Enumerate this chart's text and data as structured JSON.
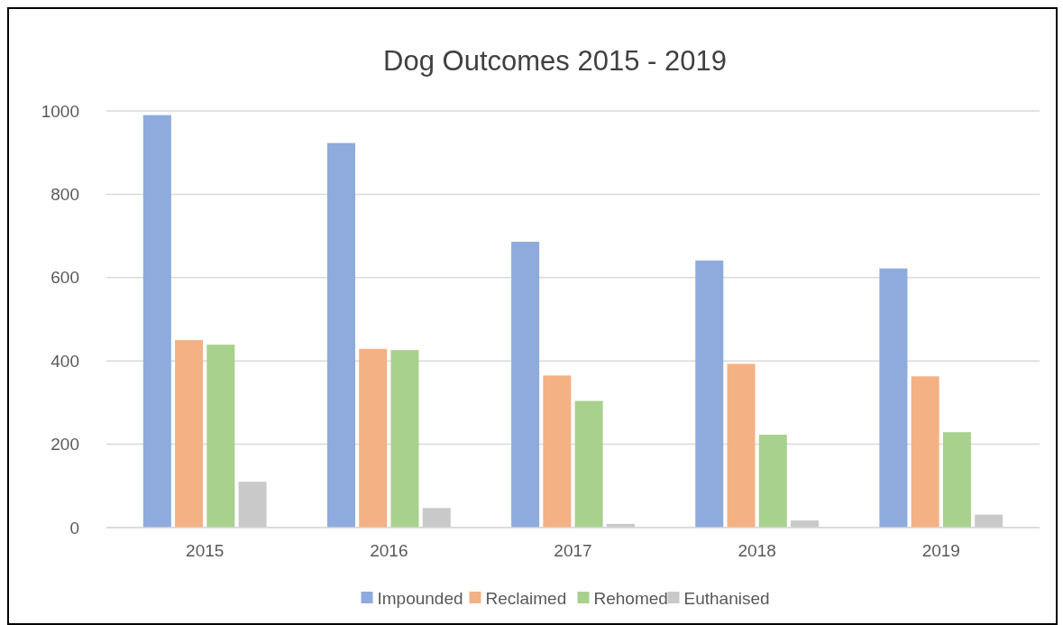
{
  "chart_data": {
    "type": "bar",
    "title": "Dog Outcomes 2015 - 2019",
    "categories": [
      "2015",
      "2016",
      "2017",
      "2018",
      "2019"
    ],
    "series": [
      {
        "name": "Impounded",
        "color": "#8faadc",
        "values": [
          990,
          923,
          686,
          641,
          622
        ]
      },
      {
        "name": "Reclaimed",
        "color": "#f4b183",
        "values": [
          450,
          429,
          365,
          393,
          363
        ]
      },
      {
        "name": "Rehomed",
        "color": "#a9d18e",
        "values": [
          439,
          426,
          304,
          223,
          229
        ]
      },
      {
        "name": "Euthanised",
        "color": "#c9c9c9",
        "values": [
          110,
          47,
          9,
          17,
          31
        ]
      }
    ],
    "ylim": [
      0,
      1000
    ],
    "yticks": [
      0,
      200,
      400,
      600,
      800,
      1000
    ],
    "grid": "y",
    "legend": "bottom"
  }
}
